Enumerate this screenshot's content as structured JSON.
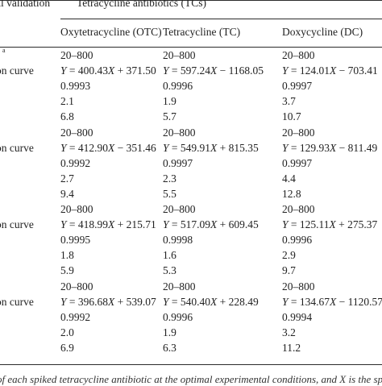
{
  "header": {
    "validation_label": "al validation",
    "group_label": "Tetracycline antibiotics (TCs)",
    "columns": [
      "Oxytetracycline (OTC)",
      "Tetracycline (TC)",
      "Doxycycline (DC)"
    ]
  },
  "row_labels": {
    "superscript": "a",
    "calibration": "on curve"
  },
  "groups": [
    {
      "range": [
        "20–800",
        "20–800",
        "20–800"
      ],
      "equation": [
        {
          "y": "Y",
          "eq": " = 400.43",
          "x": "X",
          "rest": " + 371.50"
        },
        {
          "y": "Y",
          "eq": " = 597.24",
          "x": "X",
          "rest": " − 1168.05"
        },
        {
          "y": "Y",
          "eq": " = 124.01",
          "x": "X",
          "rest": " − 703.41"
        }
      ],
      "r2": [
        "0.9993",
        "0.9996",
        "0.9997"
      ],
      "lod": [
        "2.1",
        "1.9",
        "3.7"
      ],
      "loq": [
        "6.8",
        "5.7",
        "10.7"
      ]
    },
    {
      "range": [
        "20–800",
        "20–800",
        "20–800"
      ],
      "equation": [
        {
          "y": "Y",
          "eq": " = 412.90",
          "x": "X",
          "rest": " − 351.46"
        },
        {
          "y": "Y",
          "eq": " = 549.91",
          "x": "X",
          "rest": " + 815.35"
        },
        {
          "y": "Y",
          "eq": " = 129.93",
          "x": "X",
          "rest": " − 811.49"
        }
      ],
      "r2": [
        "0.9992",
        "0.9997",
        "0.9997"
      ],
      "lod": [
        "2.7",
        "2.3",
        "4.4"
      ],
      "loq": [
        "9.4",
        "5.5",
        "12.8"
      ]
    },
    {
      "range": [
        "20–800",
        "20–800",
        "20–800"
      ],
      "equation": [
        {
          "y": "Y",
          "eq": " = 418.99",
          "x": "X",
          "rest": " + 215.71"
        },
        {
          "y": "Y",
          "eq": " = 517.09",
          "x": "X",
          "rest": " + 609.45"
        },
        {
          "y": "Y",
          "eq": " = 125.11",
          "x": "X",
          "rest": " + 275.37"
        }
      ],
      "r2": [
        "0.9995",
        "0.9998",
        "0.9996"
      ],
      "lod": [
        "1.8",
        "1.6",
        "2.9"
      ],
      "loq": [
        "5.9",
        "5.3",
        "9.7"
      ]
    },
    {
      "range": [
        "20–800",
        "20–800",
        "20–800"
      ],
      "equation": [
        {
          "y": "Y",
          "eq": " = 396.68",
          "x": "X",
          "rest": " + 539.07"
        },
        {
          "y": "Y",
          "eq": " = 540.40",
          "x": "X",
          "rest": " + 228.49"
        },
        {
          "y": "Y",
          "eq": " = 134.67",
          "x": "X",
          "rest": " − 1120.57"
        }
      ],
      "r2": [
        "0.9992",
        "0.9996",
        "0.9994"
      ],
      "lod": [
        "2.0",
        "1.9",
        "3.2"
      ],
      "loq": [
        "6.9",
        "6.3",
        "11.2"
      ]
    }
  ],
  "footnote": "of each spiked tetracycline antibiotic at the optimal experimental conditions, and X is the spike"
}
